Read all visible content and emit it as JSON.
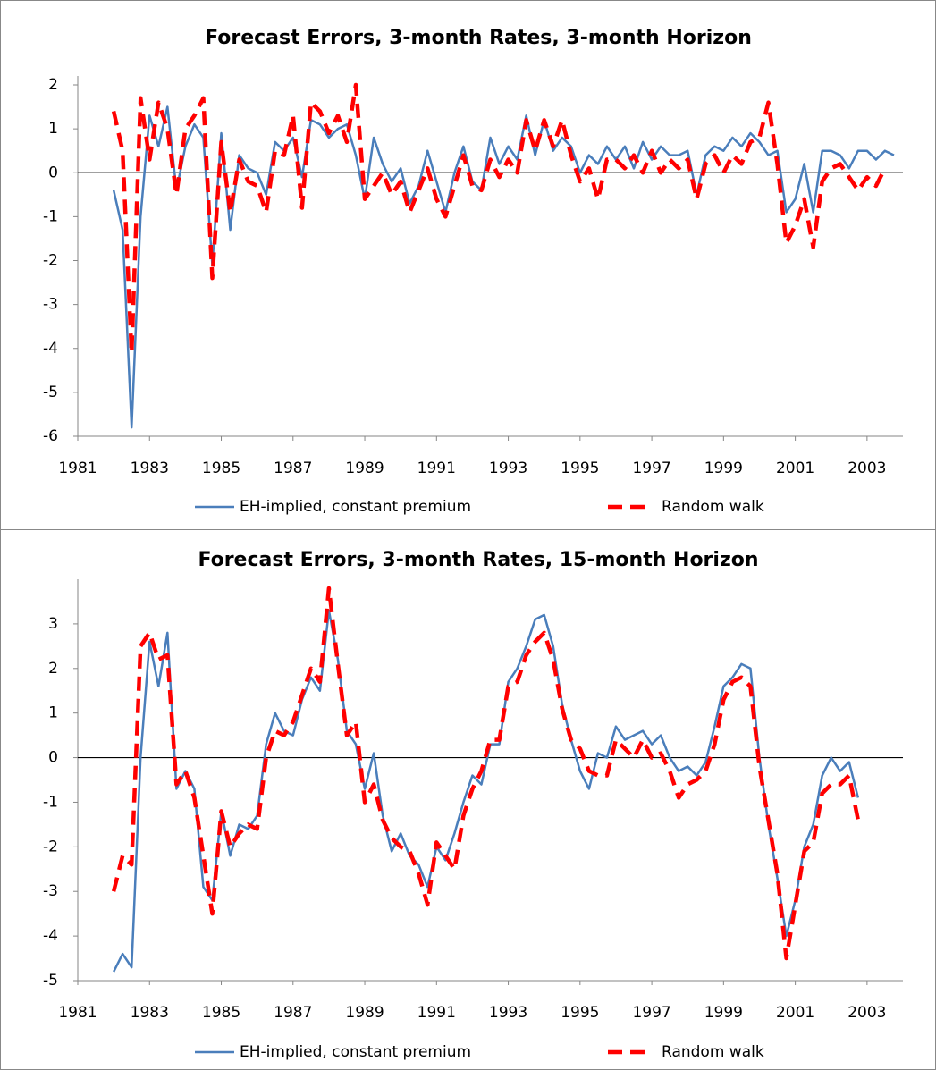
{
  "chart_data": [
    {
      "type": "line",
      "title": "Forecast Errors, 3-month Rates, 3-month Horizon",
      "x": [
        1982,
        1982.25,
        1982.5,
        1982.75,
        1983,
        1983.25,
        1983.5,
        1983.75,
        1984,
        1984.25,
        1984.5,
        1984.75,
        1985,
        1985.25,
        1985.5,
        1985.75,
        1986,
        1986.25,
        1986.5,
        1986.75,
        1987,
        1987.25,
        1987.5,
        1987.75,
        1988,
        1988.25,
        1988.5,
        1988.75,
        1989,
        1989.25,
        1989.5,
        1989.75,
        1990,
        1990.25,
        1990.5,
        1990.75,
        1991,
        1991.25,
        1991.5,
        1991.75,
        1992,
        1992.25,
        1992.5,
        1992.75,
        1993,
        1993.25,
        1993.5,
        1993.75,
        1994,
        1994.25,
        1994.5,
        1994.75,
        1995,
        1995.25,
        1995.5,
        1995.75,
        1996,
        1996.25,
        1996.5,
        1996.75,
        1997,
        1997.25,
        1997.5,
        1997.75,
        1998,
        1998.25,
        1998.5,
        1998.75,
        1999,
        1999.25,
        1999.5,
        1999.75,
        2000,
        2000.25,
        2000.5,
        2000.75,
        2001,
        2001.25,
        2001.5,
        2001.75,
        2002,
        2002.25,
        2002.5,
        2002.75,
        2003,
        2003.25,
        2003.5,
        2003.75
      ],
      "series": [
        {
          "name": "EH-implied, constant premium",
          "color": "#4a7ebb",
          "dashed": false,
          "values": [
            -0.4,
            -1.3,
            -5.8,
            -1.0,
            1.3,
            0.6,
            1.5,
            -0.4,
            0.6,
            1.1,
            0.8,
            -2.1,
            0.9,
            -1.3,
            0.4,
            0.1,
            0.0,
            -0.5,
            0.7,
            0.5,
            0.8,
            -0.1,
            1.2,
            1.1,
            0.8,
            1.0,
            1.1,
            0.4,
            -0.6,
            0.8,
            0.2,
            -0.2,
            0.1,
            -0.7,
            -0.3,
            0.5,
            -0.2,
            -0.9,
            0.0,
            0.6,
            -0.2,
            -0.4,
            0.8,
            0.2,
            0.6,
            0.3,
            1.3,
            0.4,
            1.2,
            0.5,
            0.8,
            0.6,
            0.0,
            0.4,
            0.2,
            0.6,
            0.3,
            0.6,
            0.1,
            0.7,
            0.3,
            0.6,
            0.4,
            0.4,
            0.5,
            -0.5,
            0.4,
            0.6,
            0.5,
            0.8,
            0.6,
            0.9,
            0.7,
            0.4,
            0.5,
            -0.9,
            -0.6,
            0.2,
            -0.9,
            0.5,
            0.5,
            0.4,
            0.1,
            0.5,
            0.5,
            0.3,
            0.5,
            0.4
          ]
        },
        {
          "name": "Random walk",
          "color": "#ff0000",
          "dashed": true,
          "values": [
            1.4,
            0.5,
            -4.1,
            1.7,
            0.3,
            1.6,
            1.0,
            -0.5,
            1.0,
            1.3,
            1.7,
            -2.4,
            0.7,
            -0.9,
            0.3,
            -0.2,
            -0.3,
            -0.9,
            0.5,
            0.4,
            1.3,
            -0.8,
            1.6,
            1.4,
            0.9,
            1.3,
            0.7,
            2.0,
            -0.6,
            -0.3,
            0.0,
            -0.5,
            -0.2,
            -0.9,
            -0.4,
            0.1,
            -0.6,
            -1.0,
            -0.3,
            0.4,
            -0.3,
            -0.4,
            0.3,
            -0.1,
            0.3,
            0.0,
            1.2,
            0.5,
            1.2,
            0.6,
            1.2,
            0.4,
            -0.2,
            0.1,
            -0.6,
            0.3,
            0.3,
            0.1,
            0.4,
            0.0,
            0.5,
            0.0,
            0.3,
            0.1,
            0.3,
            -0.6,
            0.2,
            0.4,
            0.0,
            0.4,
            0.2,
            0.7,
            0.8,
            1.6,
            0.2,
            -1.6,
            -1.2,
            -0.6,
            -1.7,
            -0.2,
            0.1,
            0.2,
            -0.1,
            -0.4,
            -0.1,
            -0.3,
            0.1,
            null
          ]
        }
      ],
      "xlim": [
        1981,
        2004
      ],
      "xticks": [
        1981,
        1983,
        1985,
        1987,
        1989,
        1991,
        1993,
        1995,
        1997,
        1999,
        2001,
        2003
      ],
      "ylim": [
        -6,
        2
      ],
      "yticks": [
        -6,
        -5,
        -4,
        -3,
        -2,
        -1,
        0,
        1,
        2
      ],
      "grid": false,
      "legend": "bottom"
    },
    {
      "type": "line",
      "title": "Forecast Errors, 3-month Rates, 15-month Horizon",
      "x": [
        1982,
        1982.25,
        1982.5,
        1982.75,
        1983,
        1983.25,
        1983.5,
        1983.75,
        1984,
        1984.25,
        1984.5,
        1984.75,
        1985,
        1985.25,
        1985.5,
        1985.75,
        1986,
        1986.25,
        1986.5,
        1986.75,
        1987,
        1987.25,
        1987.5,
        1987.75,
        1988,
        1988.25,
        1988.5,
        1988.75,
        1989,
        1989.25,
        1989.5,
        1989.75,
        1990,
        1990.25,
        1990.5,
        1990.75,
        1991,
        1991.25,
        1991.5,
        1991.75,
        1992,
        1992.25,
        1992.5,
        1992.75,
        1993,
        1993.25,
        1993.5,
        1993.75,
        1994,
        1994.25,
        1994.5,
        1994.75,
        1995,
        1995.25,
        1995.5,
        1995.75,
        1996,
        1996.25,
        1996.5,
        1996.75,
        1997,
        1997.25,
        1997.5,
        1997.75,
        1998,
        1998.25,
        1998.5,
        1998.75,
        1999,
        1999.25,
        1999.5,
        1999.75,
        2000,
        2000.25,
        2000.5,
        2000.75,
        2001,
        2001.25,
        2001.5,
        2001.75,
        2002,
        2002.25,
        2002.5,
        2002.75
      ],
      "series": [
        {
          "name": "EH-implied, constant premium",
          "color": "#4a7ebb",
          "dashed": false,
          "values": [
            -4.8,
            -4.4,
            -4.7,
            0.0,
            2.6,
            1.6,
            2.8,
            -0.7,
            -0.3,
            -0.7,
            -2.9,
            -3.2,
            -1.2,
            -2.2,
            -1.5,
            -1.6,
            -1.3,
            0.3,
            1.0,
            0.6,
            0.5,
            1.3,
            1.8,
            1.5,
            3.3,
            2.2,
            0.6,
            0.3,
            -0.7,
            0.1,
            -1.3,
            -2.1,
            -1.7,
            -2.2,
            -2.4,
            -2.9,
            -2.0,
            -2.3,
            -1.7,
            -1.0,
            -0.4,
            -0.6,
            0.3,
            0.3,
            1.7,
            2.0,
            2.5,
            3.1,
            3.2,
            2.5,
            1.2,
            0.4,
            -0.3,
            -0.7,
            0.1,
            0.0,
            0.7,
            0.4,
            0.5,
            0.6,
            0.3,
            0.5,
            0.0,
            -0.3,
            -0.2,
            -0.4,
            -0.1,
            0.7,
            1.6,
            1.8,
            2.1,
            2.0,
            0.0,
            -1.5,
            -2.7,
            -4.0,
            -3.2,
            -2.0,
            -1.5,
            -0.4,
            0.0,
            -0.3,
            -0.1,
            -0.9
          ]
        },
        {
          "name": "Random walk",
          "color": "#ff0000",
          "dashed": true,
          "values": [
            -3.0,
            -2.2,
            -2.4,
            2.5,
            2.8,
            2.2,
            2.3,
            -0.6,
            -0.3,
            -0.9,
            -2.2,
            -3.5,
            -1.2,
            -2.0,
            -1.7,
            -1.5,
            -1.6,
            0.0,
            0.6,
            0.5,
            0.8,
            1.4,
            2.0,
            1.7,
            3.8,
            2.1,
            0.5,
            0.8,
            -1.0,
            -0.6,
            -1.4,
            -1.8,
            -2.0,
            -2.1,
            -2.6,
            -3.3,
            -1.9,
            -2.2,
            -2.5,
            -1.3,
            -0.7,
            -0.3,
            0.4,
            0.4,
            1.6,
            1.7,
            2.3,
            2.6,
            2.8,
            2.2,
            1.1,
            0.4,
            0.2,
            -0.3,
            -0.4,
            -0.4,
            0.4,
            0.2,
            0.0,
            0.4,
            0.0,
            0.1,
            -0.3,
            -0.9,
            -0.6,
            -0.5,
            -0.3,
            0.3,
            1.3,
            1.7,
            1.8,
            1.6,
            -0.2,
            -1.4,
            -2.6,
            -4.5,
            -3.3,
            -2.1,
            -1.9,
            -0.8,
            -0.6,
            -0.6,
            -0.4,
            -1.4
          ]
        }
      ],
      "xlim": [
        1981,
        2004
      ],
      "xticks": [
        1981,
        1983,
        1985,
        1987,
        1989,
        1991,
        1993,
        1995,
        1997,
        1999,
        2001,
        2003
      ],
      "ylim": [
        -5,
        3.8
      ],
      "yticks": [
        -5,
        -4,
        -3,
        -2,
        -1,
        0,
        1,
        2,
        3
      ],
      "grid": false,
      "legend": "bottom"
    }
  ]
}
